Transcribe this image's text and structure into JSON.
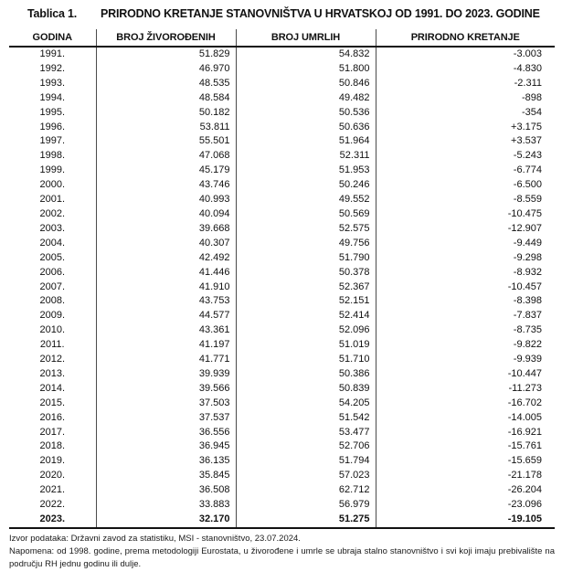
{
  "header": {
    "label": "Tablica 1.",
    "title": "PRIRODNO KRETANJE STANOVNIŠTVA U HRVATSKOJ OD 1991. DO 2023. GODINE"
  },
  "table": {
    "columns": [
      "GODINA",
      "BROJ ŽIVOROĐENIH",
      "BROJ UMRLIH",
      "PRIRODNO KRETANJE"
    ],
    "rows": [
      [
        "1991.",
        "51.829",
        "54.832",
        "-3.003"
      ],
      [
        "1992.",
        "46.970",
        "51.800",
        "-4.830"
      ],
      [
        "1993.",
        "48.535",
        "50.846",
        "-2.311"
      ],
      [
        "1994.",
        "48.584",
        "49.482",
        "-898"
      ],
      [
        "1995.",
        "50.182",
        "50.536",
        "-354"
      ],
      [
        "1996.",
        "53.811",
        "50.636",
        "+3.175"
      ],
      [
        "1997.",
        "55.501",
        "51.964",
        "+3.537"
      ],
      [
        "1998.",
        "47.068",
        "52.311",
        "-5.243"
      ],
      [
        "1999.",
        "45.179",
        "51.953",
        "-6.774"
      ],
      [
        "2000.",
        "43.746",
        "50.246",
        "-6.500"
      ],
      [
        "2001.",
        "40.993",
        "49.552",
        "-8.559"
      ],
      [
        "2002.",
        "40.094",
        "50.569",
        "-10.475"
      ],
      [
        "2003.",
        "39.668",
        "52.575",
        "-12.907"
      ],
      [
        "2004.",
        "40.307",
        "49.756",
        "-9.449"
      ],
      [
        "2005.",
        "42.492",
        "51.790",
        "-9.298"
      ],
      [
        "2006.",
        "41.446",
        "50.378",
        "-8.932"
      ],
      [
        "2007.",
        "41.910",
        "52.367",
        "-10.457"
      ],
      [
        "2008.",
        "43.753",
        "52.151",
        "-8.398"
      ],
      [
        "2009.",
        "44.577",
        "52.414",
        "-7.837"
      ],
      [
        "2010.",
        "43.361",
        "52.096",
        "-8.735"
      ],
      [
        "2011.",
        "41.197",
        "51.019",
        "-9.822"
      ],
      [
        "2012.",
        "41.771",
        "51.710",
        "-9.939"
      ],
      [
        "2013.",
        "39.939",
        "50.386",
        "-10.447"
      ],
      [
        "2014.",
        "39.566",
        "50.839",
        "-11.273"
      ],
      [
        "2015.",
        "37.503",
        "54.205",
        "-16.702"
      ],
      [
        "2016.",
        "37.537",
        "51.542",
        "-14.005"
      ],
      [
        "2017.",
        "36.556",
        "53.477",
        "-16.921"
      ],
      [
        "2018.",
        "36.945",
        "52.706",
        "-15.761"
      ],
      [
        "2019.",
        "36.135",
        "51.794",
        "-15.659"
      ],
      [
        "2020.",
        "35.845",
        "57.023",
        "-21.178"
      ],
      [
        "2021.",
        "36.508",
        "62.712",
        "-26.204"
      ],
      [
        "2022.",
        "33.883",
        "56.979",
        "-23.096"
      ],
      [
        "2023.",
        "32.170",
        "51.275",
        "-19.105"
      ]
    ]
  },
  "footnotes": {
    "source": "Izvor podataka: Državni zavod za statistiku, MSI - stanovništvo, 23.07.2024.",
    "note": "Napomena: od 1998. godine, prema metodologiji Eurostata, u živorođene i umrle se ubraja stalno stanovništvo i svi koji imaju prebivalište na području RH jednu godinu ili dulje."
  }
}
